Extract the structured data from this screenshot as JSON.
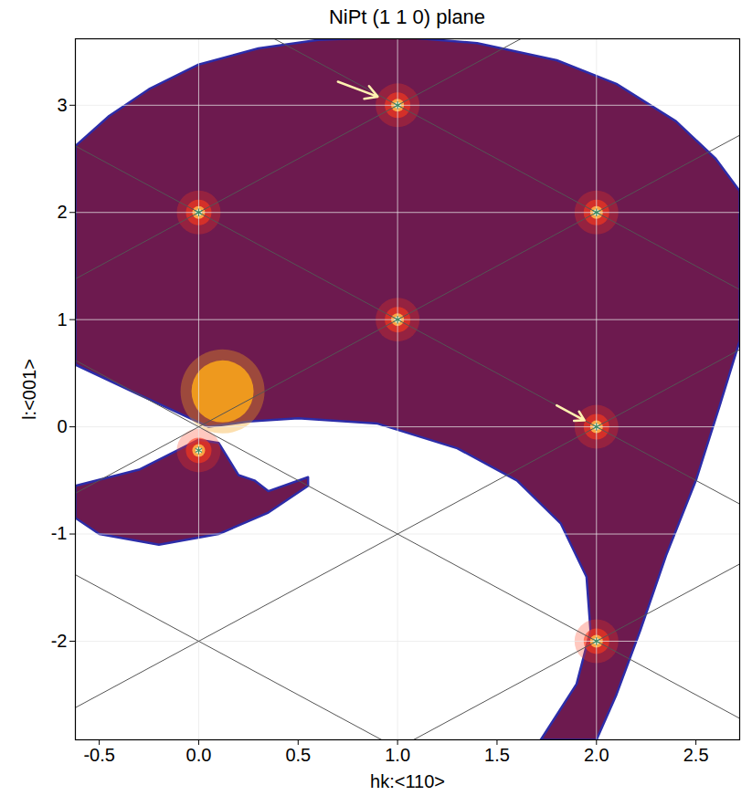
{
  "chart_data": {
    "type": "intensity_map",
    "title": "NiPt (1 1 0) plane",
    "x_label": "hk:<110>",
    "y_label": "l:<001>",
    "xlim": [
      -0.62,
      2.72
    ],
    "ylim": [
      -2.92,
      3.62
    ],
    "xticks": [
      -0.5,
      {
        "value": 0,
        "label": "0.0"
      },
      0.5,
      {
        "value": 1,
        "label": "1.0"
      },
      1.5,
      {
        "value": 2,
        "label": "2.0"
      },
      2.5
    ],
    "yticks": [
      -2,
      -1,
      0,
      1,
      2,
      3
    ],
    "grid": true,
    "grid_x": [
      0,
      1,
      2
    ],
    "color": "#6d1a4f",
    "lattice_lines": [
      {
        "slope": 1,
        "intercept": -4
      },
      {
        "slope": 1,
        "intercept": -2
      },
      {
        "slope": 1,
        "intercept": 0
      },
      {
        "slope": 1,
        "intercept": 2
      },
      {
        "slope": -1,
        "intercept": -2
      },
      {
        "slope": -1,
        "intercept": 0
      },
      {
        "slope": -1,
        "intercept": 2
      },
      {
        "slope": -1,
        "intercept": 4
      }
    ],
    "peaks": [
      {
        "hk": 0,
        "l": 2,
        "color": "#ff3b1a"
      },
      {
        "hk": 1,
        "l": 3,
        "color": "#ff3b1a"
      },
      {
        "hk": 1,
        "l": 1,
        "color": "#ff3b1a"
      },
      {
        "hk": 2,
        "l": 2,
        "color": "#ff3b1a"
      },
      {
        "hk": 2,
        "l": 0,
        "color": "#ff3b1a"
      },
      {
        "hk": 2,
        "l": -2,
        "color": "#ff3b1a"
      },
      {
        "hk": 0,
        "l": -0.22,
        "color": "#ff3b1a"
      }
    ],
    "beam": {
      "hk": 0.12,
      "l": 0.33,
      "color": "#f7a21b"
    },
    "arrows": [
      {
        "x1": 0.7,
        "y1": 3.22,
        "x2": 0.9,
        "y2": 3.08
      },
      {
        "x1": 1.8,
        "y1": 0.2,
        "x2": 1.94,
        "y2": 0.06
      }
    ],
    "coverage": [
      [
        [
          -0.62,
          0.58
        ],
        [
          -0.62,
          2.62
        ],
        [
          -0.45,
          2.9
        ],
        [
          -0.25,
          3.15
        ],
        [
          0,
          3.38
        ],
        [
          0.3,
          3.53
        ],
        [
          0.6,
          3.61
        ],
        [
          1.0,
          3.64
        ],
        [
          1.4,
          3.58
        ],
        [
          1.8,
          3.42
        ],
        [
          2.1,
          3.2
        ],
        [
          2.4,
          2.85
        ],
        [
          2.6,
          2.5
        ],
        [
          2.72,
          2.2
        ],
        [
          2.72,
          0.8
        ],
        [
          2.62,
          0.2
        ],
        [
          2.5,
          -0.5
        ],
        [
          2.35,
          -1.2
        ],
        [
          2.22,
          -1.9
        ],
        [
          2.1,
          -2.5
        ],
        [
          2.0,
          -2.92
        ],
        [
          1.72,
          -2.92
        ],
        [
          1.9,
          -2.4
        ],
        [
          1.97,
          -1.9
        ],
        [
          1.95,
          -1.4
        ],
        [
          1.82,
          -0.9
        ],
        [
          1.6,
          -0.5
        ],
        [
          1.3,
          -0.2
        ],
        [
          0.9,
          0.03
        ],
        [
          0.5,
          0.08
        ],
        [
          0.25,
          0.05
        ],
        [
          0.05,
          0.0
        ],
        [
          -0.3,
          0.3
        ]
      ],
      [
        [
          -0.62,
          -0.55
        ],
        [
          -0.3,
          -0.4
        ],
        [
          0.0,
          -0.12
        ],
        [
          0.1,
          -0.15
        ],
        [
          0.2,
          -0.45
        ],
        [
          0.28,
          -0.5
        ],
        [
          0.35,
          -0.6
        ],
        [
          0.55,
          -0.47
        ],
        [
          0.55,
          -0.55
        ],
        [
          0.35,
          -0.8
        ],
        [
          0.1,
          -1.0
        ],
        [
          -0.2,
          -1.1
        ],
        [
          -0.5,
          -1.0
        ],
        [
          -0.62,
          -0.85
        ]
      ]
    ]
  }
}
